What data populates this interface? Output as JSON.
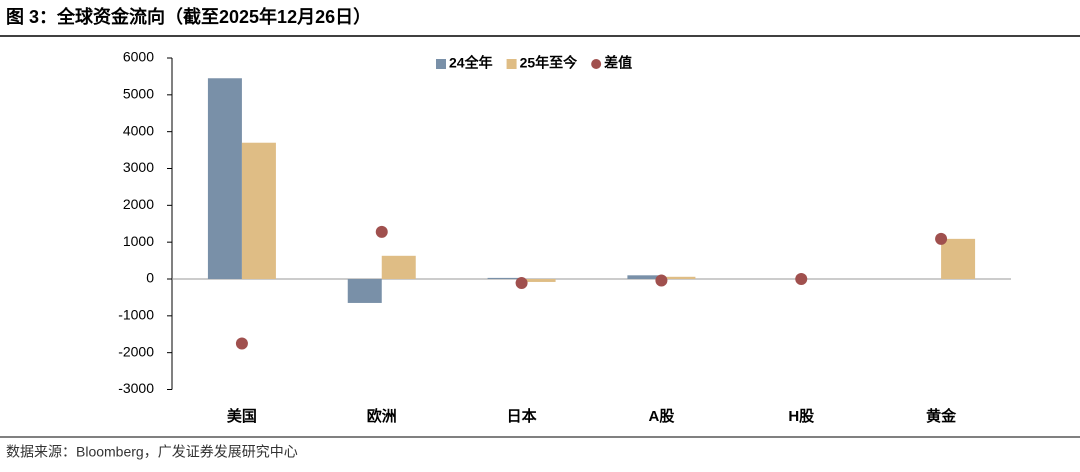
{
  "chart_data": {
    "type": "bar",
    "title": "图 3：全球资金流向（截至2025年12月26日）",
    "source": "数据来源：Bloomberg，广发证券发展研究中心",
    "categories": [
      "美国",
      "欧洲",
      "日本",
      "A股",
      "H股",
      "黄金"
    ],
    "series": [
      {
        "name": "24全年",
        "color": "#7990a8",
        "kind": "bar",
        "values": [
          5450,
          -650,
          30,
          100,
          0,
          0
        ]
      },
      {
        "name": "25年至今",
        "color": "#dfbd85",
        "kind": "bar",
        "values": [
          3700,
          630,
          -80,
          60,
          0,
          1090
        ]
      },
      {
        "name": "差值",
        "color": "#a0504e",
        "kind": "scatter",
        "values": [
          -1750,
          1280,
          -110,
          -40,
          0,
          1090
        ]
      }
    ],
    "ylim": [
      -3000,
      6000
    ],
    "yticks": [
      -3000,
      -2000,
      -1000,
      0,
      1000,
      2000,
      3000,
      4000,
      5000,
      6000
    ],
    "grid": false
  }
}
